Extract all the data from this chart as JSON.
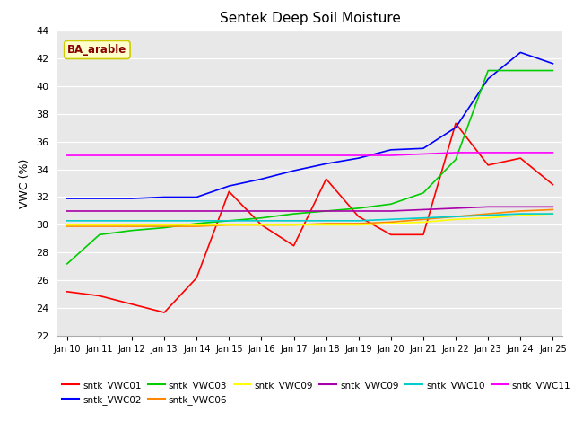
{
  "title": "Sentek Deep Soil Moisture",
  "ylabel": "VWC (%)",
  "ylim": [
    22,
    44
  ],
  "annotation": "BA_arable",
  "x_labels": [
    "Jan 10",
    "Jan 11",
    "Jan 12",
    "Jan 13",
    "Jan 14",
    "Jan 15",
    "Jan 16",
    "Jan 17",
    "Jan 18",
    "Jan 19",
    "Jan 20",
    "Jan 21",
    "Jan 22",
    "Jan 23",
    "Jan 24",
    "Jan 25"
  ],
  "series": [
    {
      "key": "sntk_VWC01",
      "color": "#ff0000",
      "data": [
        25.2,
        24.9,
        24.3,
        23.7,
        26.2,
        32.4,
        30.0,
        28.5,
        33.3,
        30.6,
        29.3,
        29.3,
        37.3,
        34.3,
        34.8,
        32.9
      ]
    },
    {
      "key": "sntk_VWC02",
      "color": "#0000ff",
      "data": [
        31.9,
        31.9,
        31.9,
        32.0,
        32.0,
        32.8,
        33.3,
        33.9,
        34.4,
        34.8,
        35.4,
        35.5,
        37.0,
        40.5,
        42.4,
        41.6
      ]
    },
    {
      "key": "sntk_VWC03",
      "color": "#00cc00",
      "data": [
        27.2,
        29.3,
        29.6,
        29.8,
        30.1,
        30.3,
        30.5,
        30.8,
        31.0,
        31.2,
        31.5,
        32.3,
        34.7,
        41.1,
        41.1,
        41.1
      ]
    },
    {
      "key": "sntk_VWC06",
      "color": "#ff8800",
      "data": [
        29.9,
        29.9,
        29.9,
        29.9,
        29.9,
        30.0,
        30.0,
        30.0,
        30.1,
        30.1,
        30.2,
        30.4,
        30.6,
        30.8,
        31.0,
        31.1
      ]
    },
    {
      "key": "sntk_VWC09",
      "color": "#ffff00",
      "data": [
        30.0,
        30.0,
        30.0,
        30.0,
        30.0,
        30.0,
        30.0,
        30.0,
        30.0,
        30.0,
        30.1,
        30.2,
        30.4,
        30.5,
        30.7,
        30.8
      ]
    },
    {
      "key": "sntk_VWC09b",
      "color": "#aa00aa",
      "data": [
        31.0,
        31.0,
        31.0,
        31.0,
        31.0,
        31.0,
        31.0,
        31.0,
        31.0,
        31.0,
        31.0,
        31.1,
        31.2,
        31.3,
        31.3,
        31.3
      ]
    },
    {
      "key": "sntk_VWC10",
      "color": "#00cccc",
      "data": [
        30.3,
        30.3,
        30.3,
        30.3,
        30.3,
        30.3,
        30.3,
        30.3,
        30.3,
        30.3,
        30.4,
        30.5,
        30.6,
        30.7,
        30.8,
        30.8
      ]
    },
    {
      "key": "sntk_VWC11",
      "color": "#ff00ff",
      "data": [
        35.0,
        35.0,
        35.0,
        35.0,
        35.0,
        35.0,
        35.0,
        35.0,
        35.0,
        35.0,
        35.0,
        35.1,
        35.2,
        35.2,
        35.2,
        35.2
      ]
    }
  ],
  "legend_row1": [
    {
      "label": "sntk_VWC01",
      "color": "#ff0000"
    },
    {
      "label": "sntk_VWC02",
      "color": "#0000ff"
    },
    {
      "label": "sntk_VWC03",
      "color": "#00cc00"
    },
    {
      "label": "sntk_VWC06",
      "color": "#ff8800"
    },
    {
      "label": "sntk_VWC09",
      "color": "#ffff00"
    },
    {
      "label": "sntk_VWC09",
      "color": "#aa00aa"
    }
  ],
  "legend_row2": [
    {
      "label": "sntk_VWC10",
      "color": "#00cccc"
    },
    {
      "label": "sntk_VWC11",
      "color": "#ff00ff"
    }
  ],
  "plot_bg_color": "#e8e8e8",
  "fig_bg_color": "#ffffff",
  "annotation_text_color": "#8b0000",
  "annotation_bg_color": "#ffffcc",
  "annotation_edge_color": "#cccc00"
}
